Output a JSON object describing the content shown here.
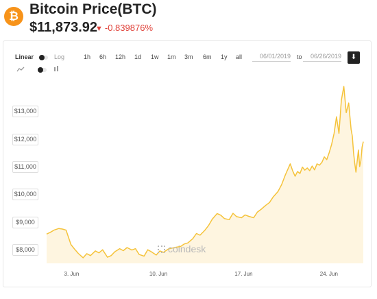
{
  "header": {
    "logo_glyph": "₿",
    "title": "Bitcoin Price",
    "ticker": "(BTC)",
    "price": "$11,873.92",
    "change_arrow": "▼",
    "change": "-0.839876%"
  },
  "controls": {
    "scale_linear": "Linear",
    "scale_log": "Log",
    "ranges": [
      "1h",
      "6h",
      "12h",
      "1d",
      "1w",
      "1m",
      "3m",
      "6m",
      "1y",
      "all"
    ],
    "date_from": "06/01/2019",
    "to_label": "to",
    "date_to": "06/26/2019",
    "download_glyph": "⬇"
  },
  "watermark": "coindesk",
  "colors": {
    "line": "#f5c33b",
    "fill": "#fdf2d6",
    "accent": "#f7931a",
    "negative": "#e0423a"
  },
  "chart_data": {
    "type": "area",
    "title": "",
    "xlabel": "",
    "ylabel": "",
    "ylim": [
      7500,
      13800
    ],
    "y_ticks": [
      8000,
      9000,
      10000,
      11000,
      12000,
      13000
    ],
    "y_tick_labels": [
      "$8,000",
      "$9,000",
      "$10,000",
      "$11,000",
      "$12,000",
      "$13,000"
    ],
    "x_range": [
      1,
      27
    ],
    "x_ticks": [
      3,
      10,
      17,
      24
    ],
    "x_tick_labels": [
      "3. Jun",
      "10. Jun",
      "17. Jun",
      "24. Jun"
    ],
    "grid": false,
    "series": [
      {
        "x": [
          1.0,
          1.3,
          1.6,
          2.0,
          2.3,
          2.6,
          3.0,
          3.3,
          3.6,
          4.0,
          4.3,
          4.6,
          5.0,
          5.3,
          5.6,
          6.0,
          6.3,
          6.6,
          7.0,
          7.3,
          7.6,
          8.0,
          8.3,
          8.6,
          9.0,
          9.3,
          9.6,
          10.0,
          10.3,
          10.6,
          11.0,
          11.3,
          11.6,
          12.0,
          12.3,
          12.6,
          13.0,
          13.3,
          13.6,
          14.0,
          14.3,
          14.6,
          15.0,
          15.3,
          15.6,
          16.0,
          16.3,
          16.6,
          17.0,
          17.3,
          17.6,
          18.0,
          18.3,
          18.6,
          19.0,
          19.3,
          19.6,
          20.0,
          20.3,
          20.6,
          21.0,
          21.2,
          21.4,
          21.6,
          21.8,
          22.0,
          22.2,
          22.4,
          22.6,
          22.8,
          23.0,
          23.2,
          23.4,
          23.6,
          23.8,
          24.0,
          24.2,
          24.4,
          24.6,
          24.8,
          25.0,
          25.2,
          25.4,
          25.6,
          25.8,
          25.9,
          26.0,
          26.1,
          26.2,
          26.3,
          26.4,
          26.5,
          26.6,
          26.7,
          26.8,
          26.9,
          27.0
        ],
        "y": [
          8560,
          8620,
          8700,
          8760,
          8740,
          8700,
          8180,
          8010,
          7860,
          7700,
          7850,
          7780,
          7950,
          7880,
          7990,
          7720,
          7780,
          7920,
          8030,
          7960,
          8070,
          7980,
          8030,
          7820,
          7760,
          7990,
          7920,
          7800,
          7950,
          7900,
          8020,
          8050,
          8080,
          8110,
          8200,
          8240,
          8390,
          8580,
          8520,
          8700,
          8870,
          9100,
          9300,
          9240,
          9120,
          9080,
          9310,
          9190,
          9150,
          9250,
          9200,
          9150,
          9350,
          9450,
          9600,
          9700,
          9900,
          10100,
          10350,
          10700,
          11100,
          10850,
          10650,
          10820,
          10750,
          10980,
          10870,
          10950,
          10850,
          11020,
          10880,
          11100,
          11050,
          11150,
          11350,
          11250,
          11500,
          11800,
          12200,
          12800,
          12200,
          13400,
          13900,
          12950,
          13300,
          12800,
          12350,
          12100,
          11500,
          11100,
          10800,
          11200,
          11600,
          11000,
          11200,
          11700,
          11900
        ]
      }
    ]
  }
}
